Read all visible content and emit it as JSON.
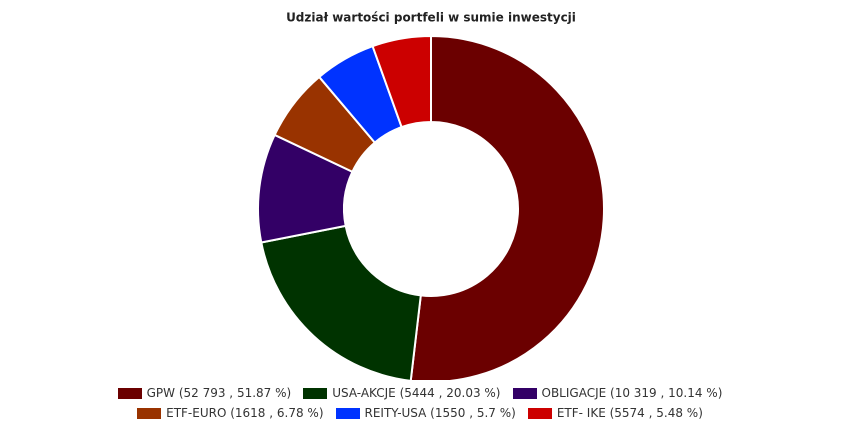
{
  "chart_data": {
    "type": "donut",
    "title": "Udział wartości portfeli w sumie inwestycji",
    "categories": [
      "GPW (52 793 , 51.87 %)",
      "USA-AKCJE (5444 , 20.03 %)",
      "OBLIGACJE (10 319 , 10.14 %)",
      "ETF-EURO (1618 , 6.78 %)",
      "REITY-USA (1550 , 5.7 %)",
      "ETF- IKE (5574 , 5.48 %)"
    ],
    "values": [
      51.87,
      20.03,
      10.14,
      6.78,
      5.7,
      5.48
    ],
    "colors": [
      "#6b0000",
      "#003300",
      "#330066",
      "#993300",
      "#0033ff",
      "#cc0000"
    ]
  }
}
